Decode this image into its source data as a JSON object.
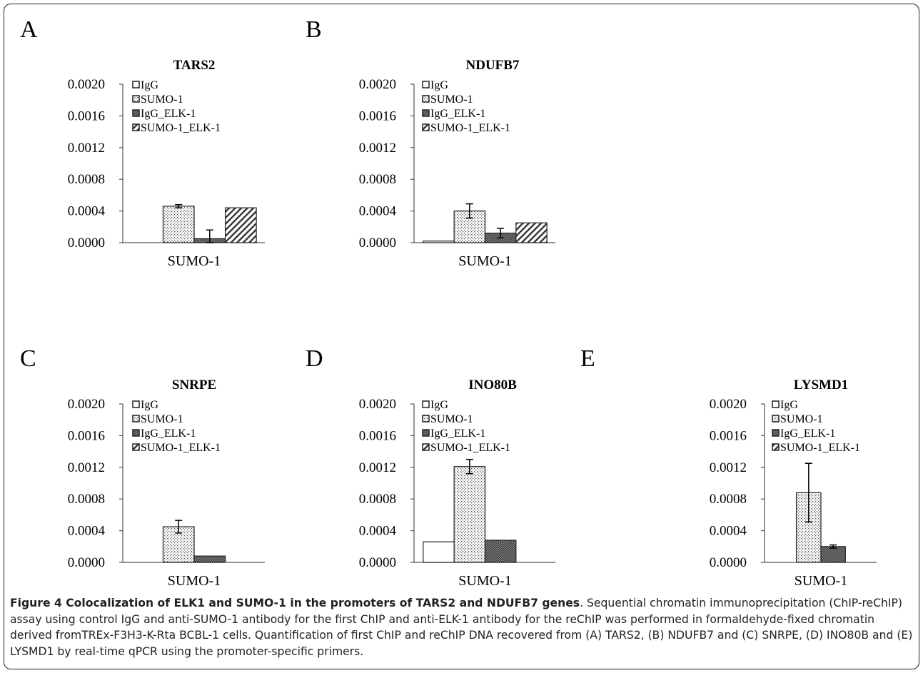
{
  "caption": {
    "title": "Figure 4 Colocalization of ELK1 and SUMO-1 in the promoters of TARS2 and NDUFB7 genes",
    "body": ". Sequential chromatin immunoprecipitation (ChIP-reChIP) assay using control IgG and anti-SUMO-1 antibody for the first ChIP and anti-ELK-1 antibody for the reChIP was performed in formaldehyde-fixed chromatin derived fromTREx-F3H3-K-Rta BCBL-1 cells. Quantification of first ChIP and reChIP DNA recovered from (A) TARS2, (B) NDUFB7 and (C) SNRPE, (D) INO80B and (E) LYSMD1 by real-time qPCR using the promoter-specific primers."
  },
  "legend_series": [
    "IgG",
    "SUMO-1",
    "IgG_ELK-1",
    "SUMO-1_ELK-1"
  ],
  "y_ticks": [
    "0.0000",
    "0.0004",
    "0.0008",
    "0.0012",
    "0.0016",
    "0.0020"
  ],
  "chart_data": [
    {
      "panel": "A",
      "type": "bar",
      "title": "TARS2",
      "categories": [
        "SUMO-1"
      ],
      "ylim": [
        0,
        0.002
      ],
      "series": [
        {
          "name": "IgG",
          "values": [
            0.0
          ],
          "error": [
            0.0
          ]
        },
        {
          "name": "SUMO-1",
          "values": [
            0.00046
          ],
          "error": [
            2e-05
          ]
        },
        {
          "name": "IgG_ELK-1",
          "values": [
            5e-05
          ],
          "error": [
            0.00011
          ]
        },
        {
          "name": "SUMO-1_ELK-1",
          "values": [
            0.00044
          ],
          "error": [
            0.0
          ]
        }
      ]
    },
    {
      "panel": "B",
      "type": "bar",
      "title": "NDUFB7",
      "categories": [
        "SUMO-1"
      ],
      "ylim": [
        0,
        0.002
      ],
      "series": [
        {
          "name": "IgG",
          "values": [
            2e-05
          ],
          "error": [
            0.0
          ]
        },
        {
          "name": "SUMO-1",
          "values": [
            0.0004
          ],
          "error": [
            9e-05
          ]
        },
        {
          "name": "IgG_ELK-1",
          "values": [
            0.00012
          ],
          "error": [
            6e-05
          ]
        },
        {
          "name": "SUMO-1_ELK-1",
          "values": [
            0.00025
          ],
          "error": [
            0.0
          ]
        }
      ]
    },
    {
      "panel": "C",
      "type": "bar",
      "title": "SNRPE",
      "categories": [
        "SUMO-1"
      ],
      "ylim": [
        0,
        0.002
      ],
      "series": [
        {
          "name": "IgG",
          "values": [
            0.0
          ],
          "error": [
            0.0
          ]
        },
        {
          "name": "SUMO-1",
          "values": [
            0.00045
          ],
          "error": [
            8e-05
          ]
        },
        {
          "name": "IgG_ELK-1",
          "values": [
            8e-05
          ],
          "error": [
            0.0
          ]
        },
        {
          "name": "SUMO-1_ELK-1",
          "values": [
            0.0
          ],
          "error": [
            0.0
          ]
        }
      ]
    },
    {
      "panel": "D",
      "type": "bar",
      "title": "INO80B",
      "categories": [
        "SUMO-1"
      ],
      "ylim": [
        0,
        0.002
      ],
      "series": [
        {
          "name": "IgG",
          "values": [
            0.00026
          ],
          "error": [
            0.0
          ]
        },
        {
          "name": "SUMO-1",
          "values": [
            0.00121
          ],
          "error": [
            9e-05
          ]
        },
        {
          "name": "IgG_ELK-1",
          "values": [
            0.00028
          ],
          "error": [
            0.0
          ]
        },
        {
          "name": "SUMO-1_ELK-1",
          "values": [
            0.0
          ],
          "error": [
            0.0
          ]
        }
      ]
    },
    {
      "panel": "E",
      "type": "bar",
      "title": "LYSMD1",
      "categories": [
        "SUMO-1"
      ],
      "ylim": [
        0,
        0.002
      ],
      "series": [
        {
          "name": "IgG",
          "values": [
            0.0
          ],
          "error": [
            0.0
          ]
        },
        {
          "name": "SUMO-1",
          "values": [
            0.00088
          ],
          "error": [
            0.00037
          ]
        },
        {
          "name": "IgG_ELK-1",
          "values": [
            0.0002
          ],
          "error": [
            2e-05
          ]
        },
        {
          "name": "SUMO-1_ELK-1",
          "values": [
            0.0
          ],
          "error": [
            0.0
          ]
        }
      ]
    }
  ]
}
